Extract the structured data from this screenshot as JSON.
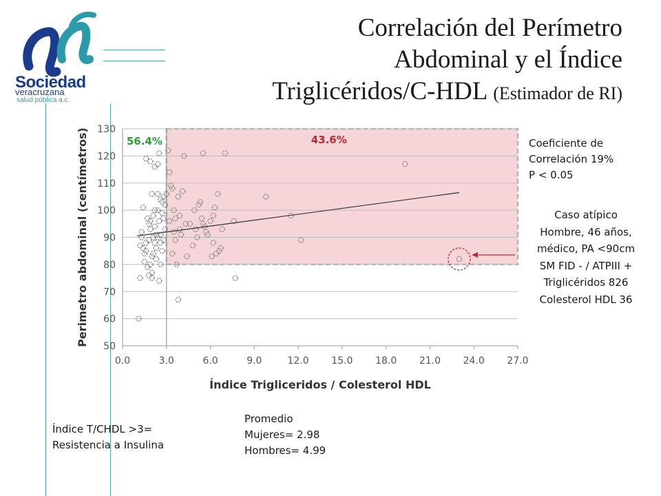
{
  "logo": {
    "name": "Sociedad",
    "subname": "veracruzana",
    "tagline": "salud pública a.c.",
    "colors": {
      "navy": "#1b3c8c",
      "teal": "#2c9aa8"
    }
  },
  "title": {
    "line1": "Correlación del Perímetro",
    "line2": "Abdominal y el Índice",
    "line3": "Triglicéridos/C-HDL",
    "line3_suffix": "(Estimador de RI)"
  },
  "notes": {
    "correlation": [
      "Coeficiente de",
      "Correlación 19%",
      "P < 0.05"
    ],
    "outlier": [
      "Caso atípico",
      "Hombre, 46 años,",
      "médico, PA <90cm",
      "SM FID - / ATPIII +",
      "Triglicéridos 826",
      "Colesterol HDL 36"
    ],
    "threshold": [
      "Índice T/CHDL >3=",
      "Resistencia a Insulina"
    ],
    "averages": [
      "Promedio",
      "Mujeres= 2.98",
      "Hombres= 4.99"
    ]
  },
  "chart_data": {
    "type": "scatter",
    "title": "",
    "xlabel": "Índice Trigliceridos / Colesterol HDL",
    "ylabel": "Perimetro abdominal (centímetros)",
    "xlim": [
      0,
      27
    ],
    "ylim": [
      50,
      130
    ],
    "xticks": [
      "0.0",
      "3.0",
      "6.0",
      "9.0",
      "12.0",
      "15.0",
      "18.0",
      "21.0",
      "24.0",
      "27.0"
    ],
    "yticks": [
      "50",
      "60",
      "70",
      "80",
      "90",
      "100",
      "110",
      "120",
      "130"
    ],
    "grid": "horizontal",
    "threshold_x": 3.0,
    "region": {
      "x": [
        3,
        27
      ],
      "y": [
        80,
        130
      ],
      "color": "#f5d5d8"
    },
    "region_labels": {
      "left": "56.4%",
      "right": "43.6%",
      "left_color": "#2e9e3a",
      "right_color": "#c0282f"
    },
    "trendline": {
      "x": [
        1.0,
        23.0
      ],
      "y": [
        90.5,
        106.5
      ]
    },
    "outlier": {
      "x": 23.0,
      "y": 82
    },
    "points": [
      [
        1.1,
        60
      ],
      [
        1.2,
        75
      ],
      [
        1.3,
        92
      ],
      [
        1.4,
        86
      ],
      [
        1.5,
        84
      ],
      [
        1.6,
        88
      ],
      [
        1.7,
        79
      ],
      [
        1.8,
        76
      ],
      [
        1.9,
        80
      ],
      [
        2.0,
        83
      ],
      [
        1.2,
        87
      ],
      [
        1.3,
        90
      ],
      [
        1.5,
        81
      ],
      [
        1.6,
        85
      ],
      [
        1.8,
        89
      ],
      [
        1.9,
        93
      ],
      [
        2.0,
        77
      ],
      [
        2.1,
        84
      ],
      [
        2.2,
        88
      ],
      [
        2.3,
        91
      ],
      [
        1.4,
        101
      ],
      [
        1.7,
        97
      ],
      [
        1.8,
        95
      ],
      [
        2.0,
        106
      ],
      [
        2.1,
        98
      ],
      [
        2.2,
        94
      ],
      [
        2.3,
        86
      ],
      [
        2.4,
        100
      ],
      [
        2.5,
        96
      ],
      [
        2.6,
        91
      ],
      [
        1.6,
        119
      ],
      [
        1.9,
        118
      ],
      [
        2.2,
        116
      ],
      [
        2.4,
        117
      ],
      [
        2.5,
        121
      ],
      [
        2.6,
        104
      ],
      [
        2.7,
        99
      ],
      [
        2.8,
        89
      ],
      [
        2.9,
        93
      ],
      [
        2.5,
        74
      ],
      [
        2.0,
        75
      ],
      [
        2.3,
        82
      ],
      [
        2.6,
        80
      ],
      [
        2.7,
        85
      ],
      [
        2.8,
        97
      ],
      [
        2.9,
        102
      ],
      [
        3.0,
        106
      ],
      [
        2.4,
        106
      ],
      [
        2.1,
        90
      ],
      [
        1.9,
        96
      ],
      [
        2.6,
        88
      ],
      [
        2.2,
        100
      ],
      [
        2.8,
        105
      ],
      [
        2.4,
        90
      ],
      [
        2.7,
        103
      ],
      [
        3.1,
        122
      ],
      [
        3.2,
        114
      ],
      [
        3.3,
        109
      ],
      [
        3.4,
        108
      ],
      [
        3.5,
        100
      ],
      [
        3.6,
        97
      ],
      [
        3.7,
        80
      ],
      [
        3.8,
        67
      ],
      [
        3.9,
        93
      ],
      [
        4.0,
        91
      ],
      [
        3.2,
        96
      ],
      [
        3.4,
        84
      ],
      [
        3.6,
        89
      ],
      [
        3.8,
        105
      ],
      [
        4.1,
        107
      ],
      [
        4.2,
        120
      ],
      [
        4.4,
        83
      ],
      [
        4.6,
        95
      ],
      [
        4.8,
        87
      ],
      [
        5.0,
        93
      ],
      [
        5.2,
        102
      ],
      [
        5.3,
        103
      ],
      [
        5.4,
        97
      ],
      [
        5.5,
        121
      ],
      [
        5.6,
        94
      ],
      [
        5.8,
        91
      ],
      [
        6.0,
        96
      ],
      [
        6.1,
        83
      ],
      [
        6.2,
        88
      ],
      [
        6.3,
        101
      ],
      [
        6.4,
        84
      ],
      [
        6.5,
        106
      ],
      [
        6.6,
        85
      ],
      [
        6.8,
        93
      ],
      [
        7.0,
        121
      ],
      [
        7.6,
        96
      ],
      [
        7.7,
        75
      ],
      [
        9.8,
        105
      ],
      [
        11.5,
        98
      ],
      [
        12.2,
        89
      ],
      [
        19.3,
        117
      ],
      [
        3.5,
        92
      ],
      [
        4.3,
        95
      ],
      [
        5.1,
        90
      ],
      [
        5.7,
        92
      ],
      [
        6.2,
        98
      ],
      [
        3.9,
        98
      ],
      [
        4.9,
        100
      ],
      [
        5.5,
        95
      ],
      [
        6.7,
        86
      ]
    ]
  }
}
